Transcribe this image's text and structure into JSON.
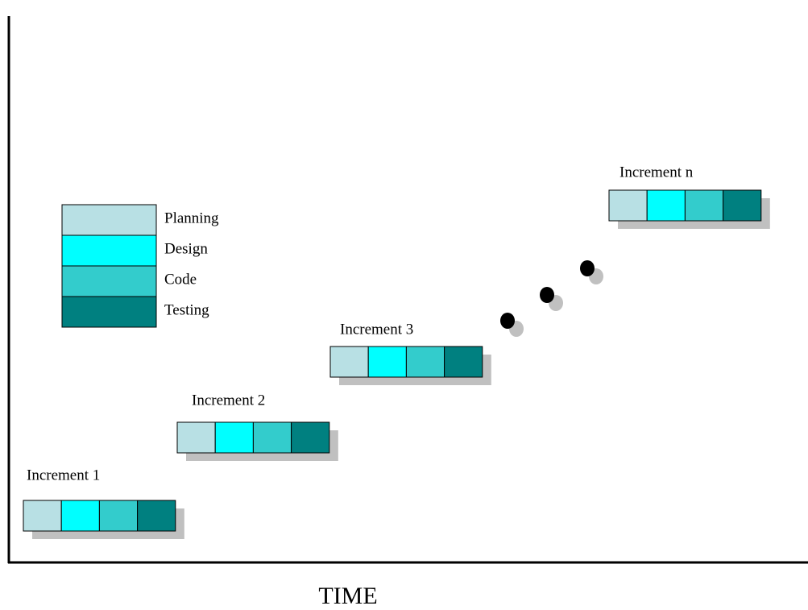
{
  "legend": [
    {
      "label": "Planning"
    },
    {
      "label": "Design"
    },
    {
      "label": "Code"
    },
    {
      "label": "Testing"
    }
  ],
  "increments": [
    {
      "label": "Increment 1"
    },
    {
      "label": "Increment 2"
    },
    {
      "label": "Increment 3"
    },
    {
      "label": "Increment n"
    }
  ],
  "axis_label": "TIME"
}
